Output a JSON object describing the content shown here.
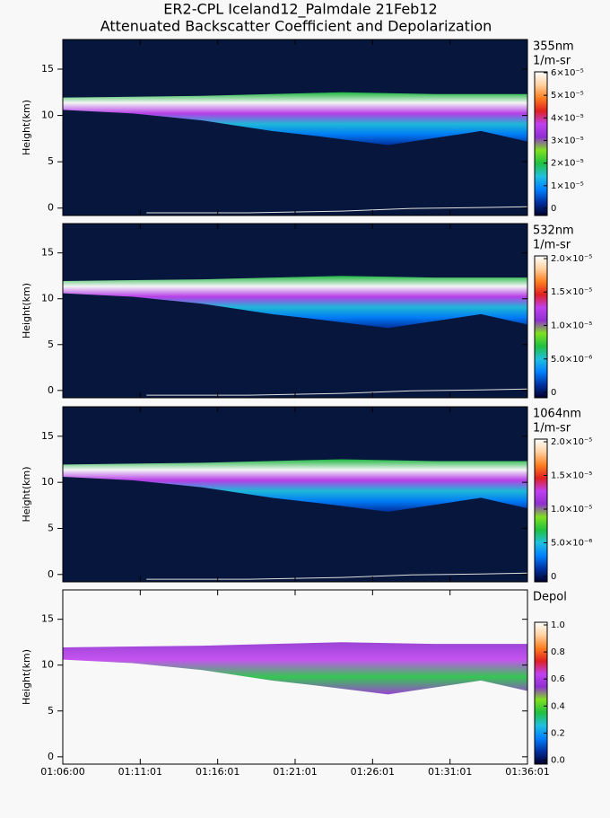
{
  "header": {
    "title": "ER2-CPL Iceland12_Palmdale 21Feb12",
    "subtitle": "Attenuated Backscatter Coefficient and Depolarization"
  },
  "chart_data": [
    {
      "type": "curtain",
      "y_label": "Height(km)",
      "ylim": [
        -0.8,
        18.2
      ],
      "yticks": [
        0,
        5,
        10,
        15
      ],
      "xlim": [
        3960,
        5766
      ],
      "background": "#06163c",
      "colorbar": {
        "label": [
          "355nm",
          "1/m-sr"
        ],
        "lim": [
          -3.2e-06,
          6.04e-05
        ],
        "ticks": [
          {
            "value": 0,
            "label": "0"
          },
          {
            "value": 1e-05,
            "label": "1×10⁻⁵"
          },
          {
            "value": 2e-05,
            "label": "2×10⁻⁵"
          },
          {
            "value": 3e-05,
            "label": "3×10⁻⁵"
          },
          {
            "value": 4e-05,
            "label": "4×10⁻⁵"
          },
          {
            "value": 5e-05,
            "label": "5×10⁻⁵"
          },
          {
            "value": 6e-05,
            "label": "6×10⁻⁵"
          }
        ],
        "colormap": [
          "#000028",
          "#0030a0",
          "#0080ff",
          "#20c0e0",
          "#20c040",
          "#80e020",
          "#9030d0",
          "#c040f0",
          "#e02020",
          "#ff8020",
          "#ffd0a0",
          "#ffffff"
        ]
      }
    },
    {
      "type": "curtain",
      "y_label": "Height(km)",
      "ylim": [
        -0.8,
        18.2
      ],
      "yticks": [
        0,
        5,
        10,
        15
      ],
      "xlim": [
        3960,
        5766
      ],
      "background": "#06163c",
      "colorbar": {
        "label": [
          "532nm",
          "1/m-sr"
        ],
        "lim": [
          -8e-07,
          2.04e-05
        ],
        "ticks": [
          {
            "value": 0,
            "label": "0"
          },
          {
            "value": 5e-06,
            "label": "5.0×10⁻⁶"
          },
          {
            "value": 1e-05,
            "label": "1.0×10⁻⁵"
          },
          {
            "value": 1.5e-05,
            "label": "1.5×10⁻⁵"
          },
          {
            "value": 2e-05,
            "label": "2.0×10⁻⁵"
          }
        ],
        "colormap": [
          "#000028",
          "#0030a0",
          "#0080ff",
          "#20c0e0",
          "#20c040",
          "#80e020",
          "#9030d0",
          "#c040f0",
          "#e02020",
          "#ff8020",
          "#ffd0a0",
          "#ffffff"
        ]
      }
    },
    {
      "type": "curtain",
      "y_label": "Height(km)",
      "ylim": [
        -0.8,
        18.2
      ],
      "yticks": [
        0,
        5,
        10,
        15
      ],
      "xlim": [
        3960,
        5766
      ],
      "background": "#06163c",
      "colorbar": {
        "label": [
          "1064nm",
          "1/m-sr"
        ],
        "lim": [
          -8e-07,
          2.04e-05
        ],
        "ticks": [
          {
            "value": 0,
            "label": "0"
          },
          {
            "value": 5e-06,
            "label": "5.0×10⁻⁶"
          },
          {
            "value": 1e-05,
            "label": "1.0×10⁻⁵"
          },
          {
            "value": 1.5e-05,
            "label": "1.5×10⁻⁵"
          },
          {
            "value": 2e-05,
            "label": "2.0×10⁻⁵"
          }
        ],
        "colormap": [
          "#000028",
          "#0030a0",
          "#0080ff",
          "#20c0e0",
          "#20c040",
          "#80e020",
          "#9030d0",
          "#c040f0",
          "#e02020",
          "#ff8020",
          "#ffd0a0",
          "#ffffff"
        ]
      }
    },
    {
      "type": "curtain",
      "y_label": "Height(km)",
      "ylim": [
        -0.8,
        18.2
      ],
      "yticks": [
        0,
        5,
        10,
        15
      ],
      "xlim": [
        3960,
        5766
      ],
      "background": "#f8f8f8",
      "xticks": [
        {
          "value": 3960,
          "label": "01:06:00"
        },
        {
          "value": 4261,
          "label": "01:11:01"
        },
        {
          "value": 4562,
          "label": "01:16:01"
        },
        {
          "value": 4863,
          "label": "01:21:01"
        },
        {
          "value": 5164,
          "label": "01:26:01"
        },
        {
          "value": 5465,
          "label": "01:31:01"
        },
        {
          "value": 5766,
          "label": "01:36:01"
        }
      ],
      "colorbar": {
        "label": [
          "Depol"
        ],
        "lim": [
          -0.03,
          1.02
        ],
        "ticks": [
          {
            "value": 0,
            "label": "0.0"
          },
          0.2,
          0.4,
          0.6,
          0.8,
          {
            "value": 1,
            "label": "1.0"
          }
        ],
        "colormap": [
          "#000028",
          "#0030a0",
          "#0080ff",
          "#20c0e0",
          "#20c040",
          "#80e020",
          "#9030d0",
          "#c040f0",
          "#e02020",
          "#ff8020",
          "#ffd0a0",
          "#ffffff"
        ]
      }
    }
  ]
}
